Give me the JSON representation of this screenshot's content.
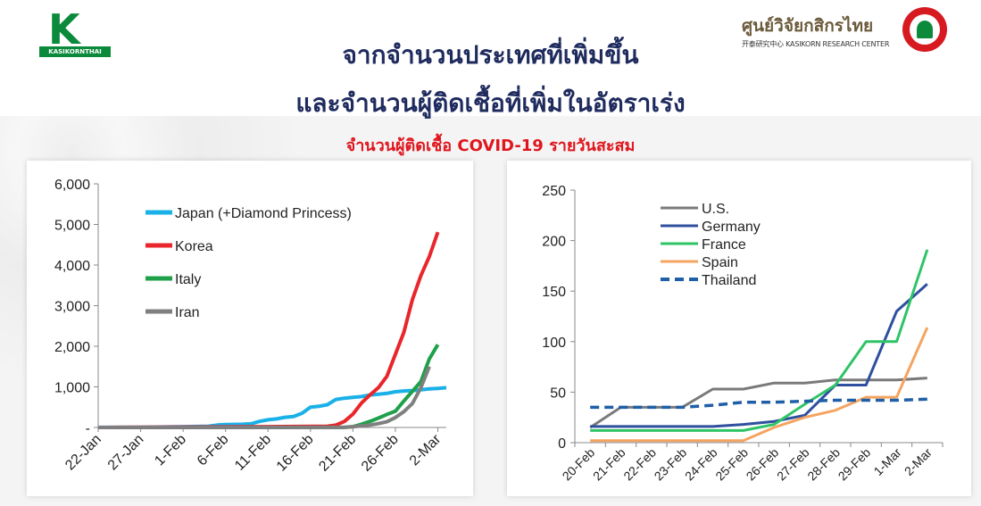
{
  "header": {
    "left_logo_text": "KASIKORNTHAI",
    "right_logo_name": "ศูนย์วิจัยกสิกรไทย",
    "right_logo_sub": "开泰研究中心 KASIKORN RESEARCH CENTER",
    "title_line1": "จากจำนวนประเทศที่เพิ่มขึ้น",
    "title_line2": "และจำนวนผู้ติดเชื้อที่เพิ่มในอัตราเร่ง",
    "subtitle": "จำนวนผู้ติดเชื้อ COVID-19 รายวันสะสม"
  },
  "colors": {
    "title": "#1f2b5e",
    "subtitle": "#e0161e",
    "brand_green": "#0b8a3c"
  },
  "chart_data": [
    {
      "type": "line",
      "x_ticks": [
        "22-Jan",
        "27-Jan",
        "1-Feb",
        "6-Feb",
        "11-Feb",
        "16-Feb",
        "21-Feb",
        "26-Feb",
        "2-Mar"
      ],
      "y_ticks": [
        "-",
        "1,000",
        "2,000",
        "3,000",
        "4,000",
        "5,000",
        "6,000"
      ],
      "ylim": [
        0,
        6000
      ],
      "x_days": 41,
      "legend_position": "top-left",
      "grid": false,
      "series": [
        {
          "name": "Japan (+Diamond Princess)",
          "color": "#1ab0e8",
          "points": [
            [
              0,
              2
            ],
            [
              5,
              4
            ],
            [
              10,
              20
            ],
            [
              13,
              30
            ],
            [
              14,
              60
            ],
            [
              15,
              70
            ],
            [
              17,
              80
            ],
            [
              18,
              90
            ],
            [
              19,
              150
            ],
            [
              20,
              190
            ],
            [
              21,
              210
            ],
            [
              22,
              250
            ],
            [
              23,
              270
            ],
            [
              24,
              350
            ],
            [
              25,
              500
            ],
            [
              26,
              520
            ],
            [
              27,
              560
            ],
            [
              28,
              690
            ],
            [
              29,
              720
            ],
            [
              30,
              740
            ],
            [
              31,
              760
            ],
            [
              32,
              800
            ],
            [
              33,
              820
            ],
            [
              34,
              840
            ],
            [
              35,
              880
            ],
            [
              36,
              900
            ],
            [
              37,
              910
            ],
            [
              38,
              930
            ],
            [
              39,
              950
            ],
            [
              40,
              960
            ],
            [
              41,
              980
            ]
          ]
        },
        {
          "name": "Korea",
          "color": "#e8262b",
          "points": [
            [
              0,
              1
            ],
            [
              20,
              20
            ],
            [
              27,
              30
            ],
            [
              28,
              60
            ],
            [
              29,
              150
            ],
            [
              30,
              330
            ],
            [
              31,
              600
            ],
            [
              32,
              800
            ],
            [
              33,
              980
            ],
            [
              34,
              1260
            ],
            [
              35,
              1800
            ],
            [
              36,
              2340
            ],
            [
              37,
              3150
            ],
            [
              38,
              3740
            ],
            [
              39,
              4210
            ],
            [
              40,
              4810
            ]
          ]
        },
        {
          "name": "Italy",
          "color": "#1fa04a",
          "points": [
            [
              0,
              0
            ],
            [
              29,
              3
            ],
            [
              30,
              20
            ],
            [
              31,
              80
            ],
            [
              32,
              150
            ],
            [
              33,
              230
            ],
            [
              34,
              320
            ],
            [
              35,
              400
            ],
            [
              36,
              650
            ],
            [
              37,
              890
            ],
            [
              38,
              1130
            ],
            [
              39,
              1690
            ],
            [
              40,
              2040
            ]
          ]
        },
        {
          "name": "Iran",
          "color": "#7f7f7f",
          "points": [
            [
              0,
              0
            ],
            [
              28,
              2
            ],
            [
              29,
              5
            ],
            [
              30,
              20
            ],
            [
              31,
              40
            ],
            [
              32,
              60
            ],
            [
              33,
              95
            ],
            [
              34,
              140
            ],
            [
              35,
              245
            ],
            [
              36,
              390
            ],
            [
              37,
              590
            ],
            [
              38,
              980
            ],
            [
              39,
              1500
            ]
          ]
        }
      ]
    },
    {
      "type": "line",
      "categories": [
        "20-Feb",
        "21-Feb",
        "22-Feb",
        "23-Feb",
        "24-Feb",
        "25-Feb",
        "26-Feb",
        "27-Feb",
        "28-Feb",
        "29-Feb",
        "1-Mar",
        "2-Mar"
      ],
      "y_ticks": [
        "0",
        "50",
        "100",
        "150",
        "200",
        "250"
      ],
      "ylim": [
        0,
        250
      ],
      "legend_position": "top-left",
      "grid": false,
      "series": [
        {
          "name": "U.S.",
          "color": "#7a7a7a",
          "dash": false,
          "values": [
            15,
            35,
            35,
            35,
            53,
            53,
            59,
            59,
            62,
            62,
            62,
            64
          ]
        },
        {
          "name": "Germany",
          "color": "#2f4f9f",
          "dash": false,
          "values": [
            16,
            16,
            16,
            16,
            16,
            18,
            21,
            27,
            57,
            57,
            130,
            157
          ]
        },
        {
          "name": "France",
          "color": "#2ec466",
          "dash": false,
          "values": [
            12,
            12,
            12,
            12,
            12,
            12,
            18,
            38,
            57,
            100,
            100,
            191
          ]
        },
        {
          "name": "Spain",
          "color": "#f4a460",
          "dash": false,
          "values": [
            2,
            2,
            2,
            2,
            2,
            2,
            15,
            25,
            32,
            45,
            45,
            114
          ]
        },
        {
          "name": "Thailand",
          "color": "#1f5fa8",
          "dash": true,
          "values": [
            35,
            35,
            35,
            35,
            37,
            40,
            40,
            41,
            42,
            42,
            42,
            43
          ]
        }
      ]
    }
  ]
}
